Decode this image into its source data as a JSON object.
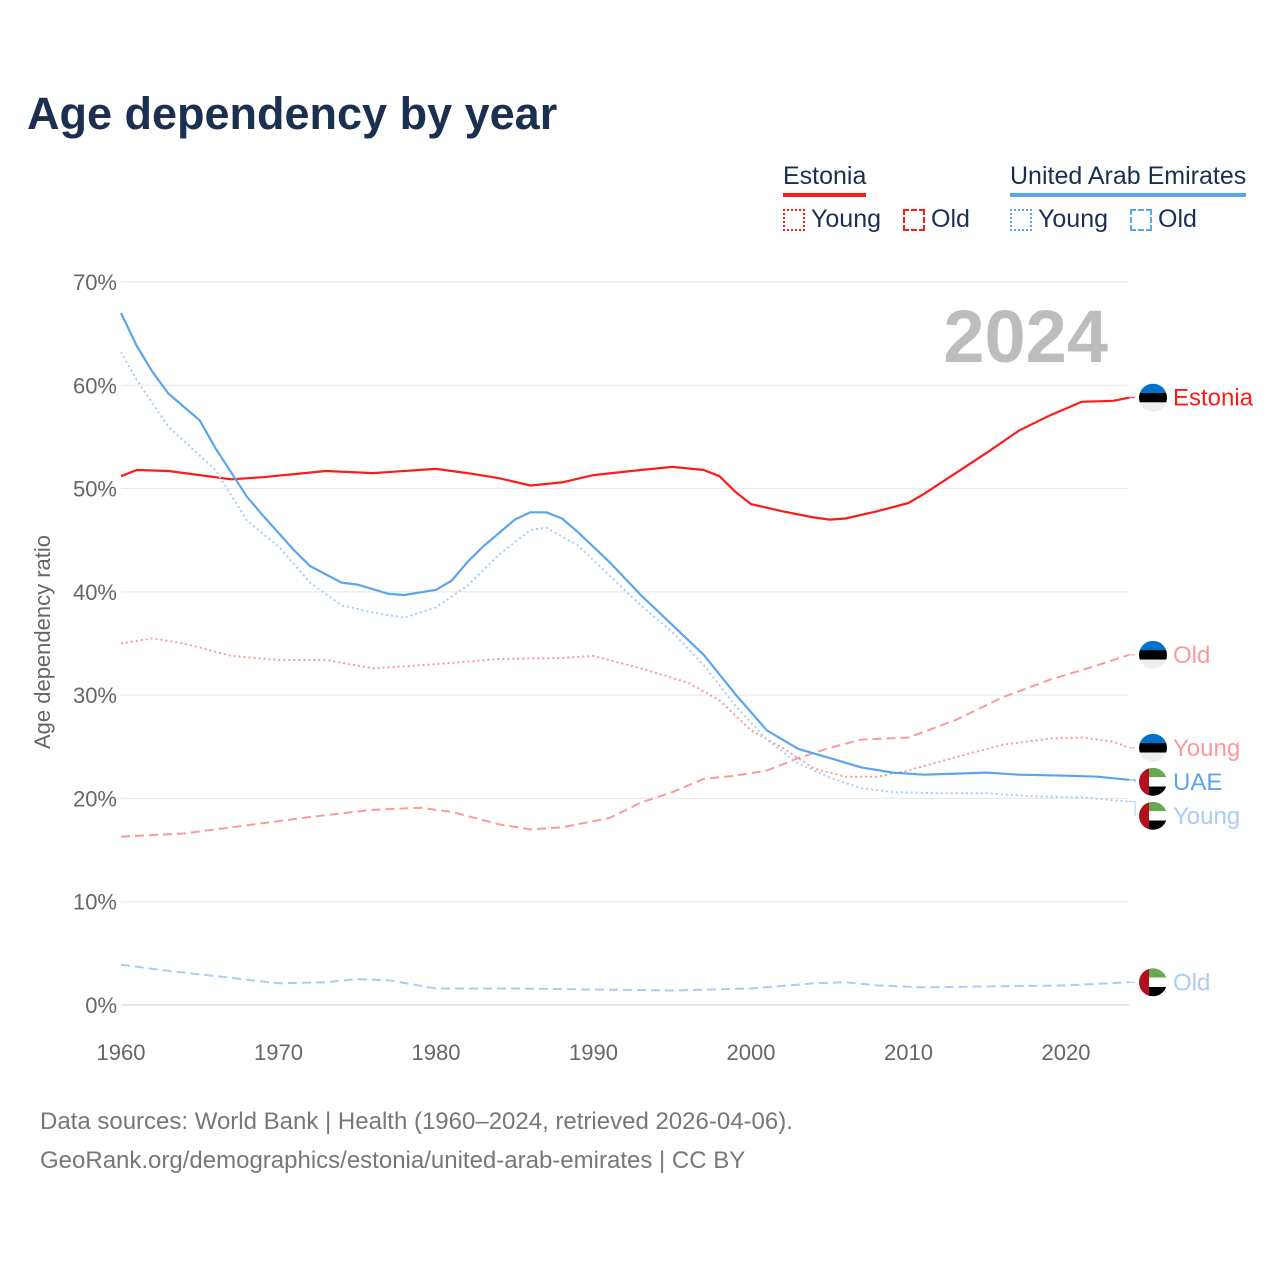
{
  "title": "Age dependency by year",
  "legend": {
    "groups": [
      {
        "country": "Estonia",
        "color": "#ff1a1a",
        "items": [
          {
            "label": "Young",
            "style": "dotted",
            "color": "#ff1a1a"
          },
          {
            "label": "Old",
            "style": "dashed",
            "color": "#ff1a1a"
          }
        ]
      },
      {
        "country": "United Arab Emirates",
        "color": "#5aa5ec",
        "items": [
          {
            "label": "Young",
            "style": "dotted",
            "color": "#5aa5ec"
          },
          {
            "label": "Old",
            "style": "dashed",
            "color": "#5aa5ec"
          }
        ]
      }
    ]
  },
  "year_label": "2024",
  "footer": {
    "line1": "Data sources: World Bank | Health (1960–2024, retrieved 2026-04-06).",
    "line2": "GeoRank.org/demographics/estonia/united-arab-emirates | CC BY"
  },
  "chart_data": {
    "type": "line",
    "title": "Age dependency by year",
    "xlabel": "",
    "ylabel": "Age dependency ratio",
    "xlim": [
      1960,
      2024
    ],
    "ylim": [
      0,
      70
    ],
    "x_ticks": [
      "1960",
      "1970",
      "1980",
      "1990",
      "2000",
      "2010",
      "2020"
    ],
    "y_ticks": [
      "0%",
      "10%",
      "20%",
      "30%",
      "40%",
      "50%",
      "60%",
      "70%"
    ],
    "grid": true,
    "series": [
      {
        "name": "Estonia",
        "end_label": "Estonia",
        "flag": "estonia",
        "style": "solid",
        "color": "#ff1a1a",
        "label_color": "#ff1a1a",
        "points": [
          [
            1960,
            51.2
          ],
          [
            1961,
            51.8
          ],
          [
            1963,
            51.7
          ],
          [
            1965,
            51.3
          ],
          [
            1967,
            50.9
          ],
          [
            1969,
            51.1
          ],
          [
            1971,
            51.4
          ],
          [
            1973,
            51.7
          ],
          [
            1976,
            51.5
          ],
          [
            1980,
            51.9
          ],
          [
            1982,
            51.5
          ],
          [
            1984,
            51.0
          ],
          [
            1986,
            50.3
          ],
          [
            1988,
            50.6
          ],
          [
            1990,
            51.3
          ],
          [
            1993,
            51.8
          ],
          [
            1995,
            52.1
          ],
          [
            1997,
            51.8
          ],
          [
            1998,
            51.2
          ],
          [
            1999,
            49.7
          ],
          [
            2000,
            48.5
          ],
          [
            2002,
            47.8
          ],
          [
            2004,
            47.2
          ],
          [
            2005,
            47.0
          ],
          [
            2006,
            47.1
          ],
          [
            2008,
            47.8
          ],
          [
            2010,
            48.6
          ],
          [
            2011,
            49.5
          ],
          [
            2013,
            51.5
          ],
          [
            2015,
            53.5
          ],
          [
            2017,
            55.6
          ],
          [
            2019,
            57.1
          ],
          [
            2021,
            58.4
          ],
          [
            2023,
            58.5
          ],
          [
            2024,
            58.8
          ]
        ]
      },
      {
        "name": "Estonia Young",
        "end_label": "Young",
        "flag": "estonia",
        "style": "dotted",
        "color": "#fb9a9a",
        "label_color": "#fb9a9a",
        "points": [
          [
            1960,
            35.0
          ],
          [
            1962,
            35.5
          ],
          [
            1964,
            35.0
          ],
          [
            1967,
            33.8
          ],
          [
            1970,
            33.4
          ],
          [
            1973,
            33.4
          ],
          [
            1976,
            32.6
          ],
          [
            1980,
            33.0
          ],
          [
            1984,
            33.5
          ],
          [
            1988,
            33.6
          ],
          [
            1990,
            33.8
          ],
          [
            1993,
            32.6
          ],
          [
            1996,
            31.2
          ],
          [
            1998,
            29.5
          ],
          [
            2000,
            26.6
          ],
          [
            2002,
            24.9
          ],
          [
            2004,
            22.9
          ],
          [
            2006,
            22.1
          ],
          [
            2008,
            22.1
          ],
          [
            2010,
            22.7
          ],
          [
            2013,
            24.0
          ],
          [
            2016,
            25.2
          ],
          [
            2019,
            25.8
          ],
          [
            2021,
            25.9
          ],
          [
            2023,
            25.5
          ],
          [
            2024,
            24.9
          ]
        ]
      },
      {
        "name": "Estonia Old",
        "end_label": "Old",
        "flag": "estonia",
        "style": "dashed",
        "color": "#fb9a9a",
        "label_color": "#fb9a9a",
        "points": [
          [
            1960,
            16.3
          ],
          [
            1964,
            16.6
          ],
          [
            1968,
            17.4
          ],
          [
            1972,
            18.2
          ],
          [
            1976,
            18.9
          ],
          [
            1979,
            19.1
          ],
          [
            1981,
            18.7
          ],
          [
            1984,
            17.5
          ],
          [
            1986,
            17.0
          ],
          [
            1988,
            17.2
          ],
          [
            1991,
            18.1
          ],
          [
            1993,
            19.6
          ],
          [
            1995,
            20.6
          ],
          [
            1997,
            21.9
          ],
          [
            1999,
            22.2
          ],
          [
            2001,
            22.7
          ],
          [
            2003,
            23.9
          ],
          [
            2005,
            24.9
          ],
          [
            2007,
            25.7
          ],
          [
            2010,
            25.9
          ],
          [
            2013,
            27.6
          ],
          [
            2016,
            29.8
          ],
          [
            2019,
            31.5
          ],
          [
            2022,
            32.9
          ],
          [
            2024,
            33.9
          ]
        ]
      },
      {
        "name": "UAE",
        "end_label": "UAE",
        "flag": "uae",
        "style": "solid",
        "color": "#5aa5ec",
        "label_color": "#5aa5ec",
        "points": [
          [
            1960,
            67.0
          ],
          [
            1961,
            63.8
          ],
          [
            1962,
            61.3
          ],
          [
            1963,
            59.2
          ],
          [
            1965,
            56.6
          ],
          [
            1966,
            53.9
          ],
          [
            1968,
            49.2
          ],
          [
            1969,
            47.4
          ],
          [
            1971,
            44.0
          ],
          [
            1972,
            42.5
          ],
          [
            1974,
            40.9
          ],
          [
            1975,
            40.7
          ],
          [
            1977,
            39.8
          ],
          [
            1978,
            39.7
          ],
          [
            1980,
            40.2
          ],
          [
            1981,
            41.1
          ],
          [
            1982,
            42.9
          ],
          [
            1983,
            44.4
          ],
          [
            1985,
            47.0
          ],
          [
            1986,
            47.7
          ],
          [
            1987,
            47.7
          ],
          [
            1988,
            47.1
          ],
          [
            1989,
            45.8
          ],
          [
            1991,
            42.9
          ],
          [
            1993,
            39.7
          ],
          [
            1995,
            36.8
          ],
          [
            1997,
            33.9
          ],
          [
            1999,
            30.1
          ],
          [
            2001,
            26.6
          ],
          [
            2003,
            24.8
          ],
          [
            2005,
            23.9
          ],
          [
            2007,
            23.0
          ],
          [
            2009,
            22.5
          ],
          [
            2011,
            22.3
          ],
          [
            2013,
            22.4
          ],
          [
            2015,
            22.5
          ],
          [
            2017,
            22.3
          ],
          [
            2020,
            22.2
          ],
          [
            2022,
            22.1
          ],
          [
            2024,
            21.8
          ]
        ]
      },
      {
        "name": "UAE Young",
        "end_label": "Young",
        "flag": "uae",
        "style": "dotted",
        "color": "#a9cdf3",
        "label_color": "#a9cdf3",
        "points": [
          [
            1960,
            63.2
          ],
          [
            1961,
            60.5
          ],
          [
            1963,
            56.0
          ],
          [
            1966,
            51.8
          ],
          [
            1968,
            46.9
          ],
          [
            1970,
            44.4
          ],
          [
            1972,
            40.9
          ],
          [
            1974,
            38.7
          ],
          [
            1976,
            38.0
          ],
          [
            1978,
            37.5
          ],
          [
            1980,
            38.5
          ],
          [
            1982,
            40.6
          ],
          [
            1984,
            43.6
          ],
          [
            1986,
            46.0
          ],
          [
            1987,
            46.2
          ],
          [
            1989,
            44.5
          ],
          [
            1991,
            41.6
          ],
          [
            1993,
            38.7
          ],
          [
            1995,
            36.1
          ],
          [
            1997,
            32.9
          ],
          [
            1999,
            29.0
          ],
          [
            2001,
            25.7
          ],
          [
            2003,
            23.4
          ],
          [
            2005,
            22.0
          ],
          [
            2007,
            21.0
          ],
          [
            2009,
            20.6
          ],
          [
            2012,
            20.5
          ],
          [
            2015,
            20.5
          ],
          [
            2018,
            20.2
          ],
          [
            2021,
            20.1
          ],
          [
            2024,
            19.7
          ]
        ]
      },
      {
        "name": "UAE Old",
        "end_label": "Old",
        "flag": "uae",
        "style": "dashed",
        "color": "#a9cdf3",
        "label_color": "#a9cdf3",
        "points": [
          [
            1960,
            3.9
          ],
          [
            1963,
            3.3
          ],
          [
            1966,
            2.8
          ],
          [
            1970,
            2.1
          ],
          [
            1973,
            2.2
          ],
          [
            1975,
            2.5
          ],
          [
            1977,
            2.4
          ],
          [
            1980,
            1.6
          ],
          [
            1985,
            1.6
          ],
          [
            1990,
            1.5
          ],
          [
            1995,
            1.4
          ],
          [
            2000,
            1.6
          ],
          [
            2004,
            2.1
          ],
          [
            2006,
            2.2
          ],
          [
            2008,
            1.9
          ],
          [
            2011,
            1.7
          ],
          [
            2015,
            1.8
          ],
          [
            2020,
            1.9
          ],
          [
            2024,
            2.2
          ]
        ]
      }
    ]
  }
}
